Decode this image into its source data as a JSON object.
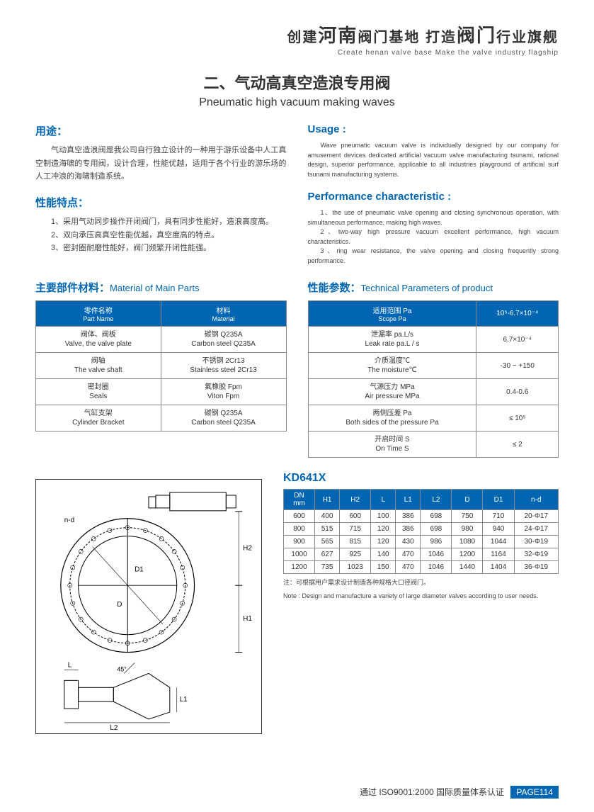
{
  "header": {
    "cn_prefix": "创建",
    "cn_big1": "河南",
    "cn_mid": "阀门基地  打造",
    "cn_big2": "阀门",
    "cn_suffix": "行业旗舰",
    "en": "Create  henan  valve  base    Make the valve industry flagship"
  },
  "title": {
    "cn": "二、气动高真空造浪专用阀",
    "en": "Pneumatic high vacuum making waves"
  },
  "usage_cn": {
    "head": "用途：",
    "body": "气动真空造浪阀是我公司自行独立设计的一种用于游乐设备中人工真空制造海啸的专用阀，设计合理，性能优越，适用于各个行业的游乐场的人工冲浪的海啸制造系统。"
  },
  "usage_en": {
    "head": "Usage :",
    "body": "Wave pneumatic vacuum valve is individually designed by our company for amusement devices dedicated artificial vacuum valve manufacturing tsunami, rational design, superior performance, applicable to all industries playground of artificial surf tsunami manufacturing systems."
  },
  "perf_cn": {
    "head": "性能特点：",
    "p1": "1、采用气动同步操作开闭阀门，具有同步性能好，造浪高度高。",
    "p2": "2、双向承压高真空性能优越，真空度高的特点。",
    "p3": "3、密封圈耐磨性能好，阀门频繁开闭性能强。"
  },
  "perf_en": {
    "head": "Performance characteristic :",
    "p1": "1、the use of pneumatic valve opening and closing synchronous operation, with simultaneous performance, making high waves.",
    "p2": "2、two-way high pressure vacuum excellent performance, high vacuum characteristics.",
    "p3": "3、ring wear resistance, the valve opening and closing frequently strong performance."
  },
  "materials": {
    "head_cn": "主要部件材料：",
    "head_en": "Material of Main Parts",
    "col1_cn": "零件名称",
    "col1_en": "Part Name",
    "col2_cn": "材料",
    "col2_en": "Material",
    "rows": [
      {
        "name_cn": "阀体、阀板",
        "name_en": "Valve, the valve plate",
        "mat_cn": "碳钢 Q235A",
        "mat_en": "Carbon steel Q235A"
      },
      {
        "name_cn": "阀轴",
        "name_en": "The valve shaft",
        "mat_cn": "不锈钢 2Cr13",
        "mat_en": "Stainless steel 2Cr13"
      },
      {
        "name_cn": "密封圈",
        "name_en": "Seals",
        "mat_cn": "氟橡胶 Fpm",
        "mat_en": "Viton Fpm"
      },
      {
        "name_cn": "气缸支架",
        "name_en": "Cylinder Bracket",
        "mat_cn": "碳钢 Q235A",
        "mat_en": "Carbon steel Q235A"
      }
    ]
  },
  "params": {
    "head_cn": "性能参数：",
    "head_en": "Technical Parameters of product",
    "col1_cn": "适用范围 Pa",
    "col1_en": "Scope Pa",
    "col2_val": "10⁵-6.7×10⁻⁴",
    "rows": [
      {
        "label_cn": "泄漏率 pa.L/s",
        "label_en": "Leak rate pa.L / s",
        "val": "6.7×10⁻⁴"
      },
      {
        "label_cn": "介质温度℃",
        "label_en": "The moisture℃",
        "val": "-30 ~ +150"
      },
      {
        "label_cn": "气源压力 MPa",
        "label_en": "Air pressure MPa",
        "val": "0.4-0.6"
      },
      {
        "label_cn": "两侧压差 Pa",
        "label_en": "Both sides of the pressure Pa",
        "val": "≤ 10⁵"
      },
      {
        "label_cn": "开启时间 S",
        "label_en": "On Time S",
        "val": "≤ 2"
      }
    ]
  },
  "model": "KD641X",
  "dim_headers": [
    "DN\nmm",
    "H1",
    "H2",
    "L",
    "L1",
    "L2",
    "D",
    "D1",
    "n-d"
  ],
  "dim_rows": [
    [
      "600",
      "400",
      "600",
      "100",
      "386",
      "698",
      "750",
      "710",
      "20-Φ17"
    ],
    [
      "800",
      "515",
      "715",
      "120",
      "386",
      "698",
      "980",
      "940",
      "24-Φ17"
    ],
    [
      "900",
      "565",
      "815",
      "120",
      "430",
      "986",
      "1080",
      "1044",
      "30-Φ19"
    ],
    [
      "1000",
      "627",
      "925",
      "140",
      "470",
      "1046",
      "1200",
      "1164",
      "32-Φ19"
    ],
    [
      "1200",
      "735",
      "1023",
      "150",
      "470",
      "1046",
      "1440",
      "1404",
      "36-Φ19"
    ]
  ],
  "note_cn": "注：可根据用户需求设计制造各种规格大口径阀门。",
  "note_en": "Note : Design and manufacture a variety of large diameter valves according to user needs.",
  "footer_text": "通过 ISO9001:2000 国际质量体系认证",
  "page_num": "PAGE114",
  "diagram_labels": {
    "nd": "n-d",
    "d": "D",
    "d1": "D1",
    "h1": "H1",
    "h2": "H2",
    "l": "L",
    "l1": "L1",
    "l2": "L2",
    "ang": "45°"
  },
  "colors": {
    "primary": "#0066b3",
    "border": "#888888",
    "text": "#333333"
  }
}
